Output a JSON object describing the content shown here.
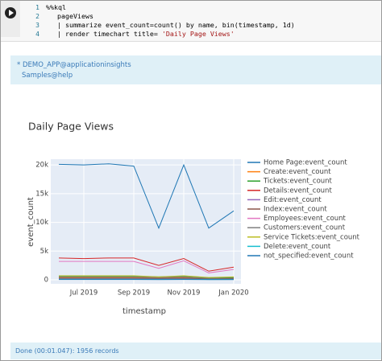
{
  "code": {
    "lines": [
      "%%kql",
      "pageViews",
      "| summarize event_count=count() by name, bin(timestamp, 1d)",
      {
        "text": "| render timechart title= ",
        "string": "'Daily Page Views'"
      }
    ],
    "line_numbers": [
      "1",
      "2",
      "3",
      "4"
    ]
  },
  "info": {
    "lines": [
      "* DEMO_APP@applicationinsights",
      "Samples@help"
    ]
  },
  "status": "Done (00:01.047): 1956 records",
  "chart_data": {
    "type": "line",
    "title": "Daily Page Views",
    "x_label": "timestamp",
    "y_label": "event_count",
    "categories": [
      null,
      "Jul 2019",
      null,
      "Sep 2019",
      null,
      "Nov 2019",
      null,
      "Jan 2020"
    ],
    "ylim": [
      -700,
      21000
    ],
    "yticks": [
      0,
      {
        "value": 5000,
        "label": "5k"
      },
      {
        "value": 10000,
        "label": "10k"
      },
      {
        "value": 15000,
        "label": "15k"
      },
      {
        "value": 20000,
        "label": "20k"
      }
    ],
    "grid": true,
    "series": [
      {
        "name": "Home Page:event_count",
        "color": "#1f77b4",
        "values": [
          20100,
          20000,
          20200,
          19800,
          9000,
          20000,
          9000,
          12000
        ]
      },
      {
        "name": "Create:event_count",
        "color": "#ff7f0e",
        "values": [
          400,
          400,
          400,
          400,
          300,
          400,
          200,
          250
        ]
      },
      {
        "name": "Tickets:event_count",
        "color": "#2ca02c",
        "values": [
          600,
          600,
          600,
          600,
          500,
          600,
          300,
          400
        ]
      },
      {
        "name": "Details:event_count",
        "color": "#d62728",
        "values": [
          3800,
          3700,
          3800,
          3800,
          2500,
          3700,
          1500,
          2200
        ]
      },
      {
        "name": "Edit:event_count",
        "color": "#9467bd",
        "values": [
          200,
          200,
          200,
          200,
          150,
          200,
          100,
          120
        ]
      },
      {
        "name": "Index:event_count",
        "color": "#8c564b",
        "values": [
          300,
          300,
          300,
          300,
          250,
          300,
          150,
          200
        ]
      },
      {
        "name": "Employees:event_count",
        "color": "#e377c2",
        "values": [
          3200,
          3200,
          3200,
          3200,
          2000,
          3300,
          1200,
          1800
        ]
      },
      {
        "name": "Customers:event_count",
        "color": "#7f7f7f",
        "values": [
          500,
          500,
          500,
          500,
          400,
          500,
          250,
          300
        ]
      },
      {
        "name": "Service Tickets:event_count",
        "color": "#bcbd22",
        "values": [
          700,
          700,
          700,
          700,
          500,
          700,
          400,
          500
        ]
      },
      {
        "name": "Delete:event_count",
        "color": "#17becf",
        "values": [
          100,
          100,
          100,
          100,
          80,
          100,
          60,
          70
        ]
      },
      {
        "name": "not_specified:event_count",
        "color": "#1f77b4",
        "values": [
          50,
          50,
          50,
          50,
          40,
          50,
          30,
          40
        ]
      }
    ]
  }
}
